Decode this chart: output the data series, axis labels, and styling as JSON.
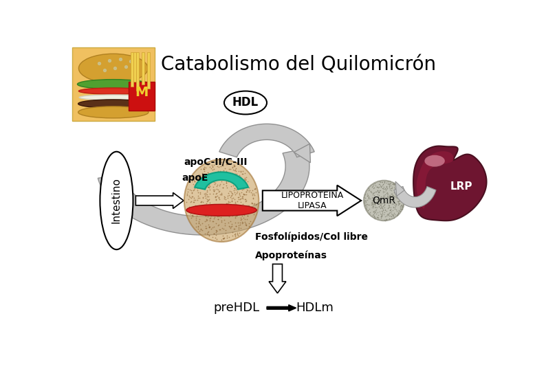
{
  "title": "Catabolismo del Quilomicrón",
  "title_fontsize": 20,
  "bg_color": "#ffffff",
  "labels": {
    "hdl": "HDL",
    "intestino": "Intestino",
    "apoe": "apoE",
    "apocii": "apoC-II/C-III",
    "lipoproteina": "LIPOPROTEINA\nLIPASA",
    "fosfolipidos": "Fosfolípidos/Col libre",
    "apoproteinas": "Apoproteínas",
    "prehdl": "preHDL",
    "hdlm": "HDLm",
    "lrp": "LRP",
    "qmr": "QmR"
  },
  "colors": {
    "gray_arrow": "#c8c8c8",
    "gray_edge": "#909090",
    "intestino_fill": "#ffffff",
    "chylomicron_fill": "#c8a060",
    "chylomicron_edge": "#a07030",
    "teal_fill": "#20c0a0",
    "teal_edge": "#10a080",
    "red_band": "#dd2020",
    "qmr_fill": "#a8a898",
    "qmr_edge": "#888878",
    "liver_dark": "#6e1530",
    "liver_mid": "#8a1a38",
    "liver_light": "#c06080",
    "liver_pink": "#e8a0b0"
  }
}
